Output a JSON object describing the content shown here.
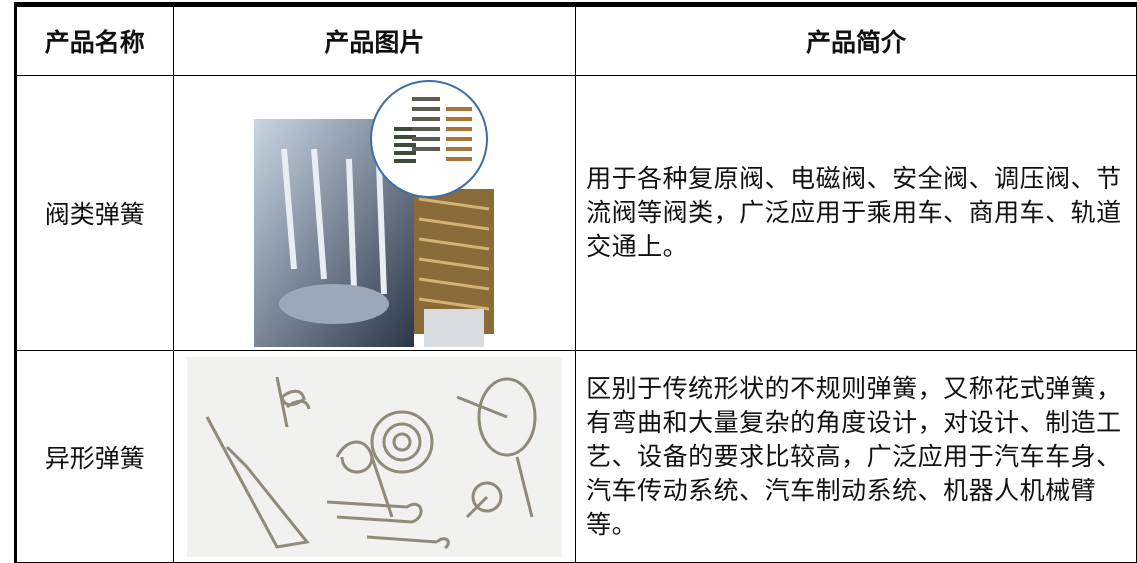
{
  "table": {
    "headers": [
      "产品名称",
      "产品图片",
      "产品简介"
    ],
    "rows": [
      [
        "阀类弹簧",
        "用于各种复原阀、电磁阀、安全阀、调压阀、节流阀等阀类，广泛应用于乘用车、商用车、轨道交通上。"
      ],
      [
        "异形弹簧",
        "区别于传统形状的不规则弹簧，又称花式弹簧，有弯曲和大量复杂的角度设计，对设计、制造工艺、设备的要求比较高，广泛应用于汽车车身、汽车传动系统、汽车制动系统、机器人机械臂等。"
      ]
    ]
  }
}
